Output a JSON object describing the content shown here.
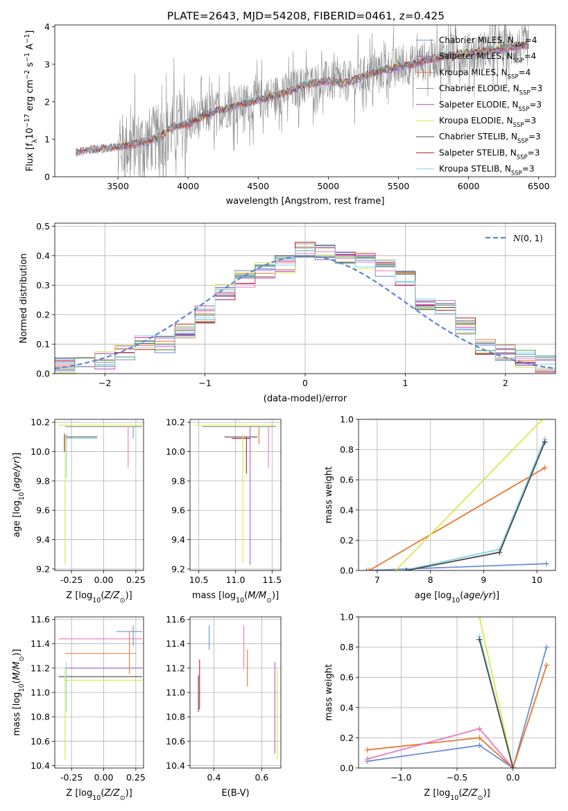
{
  "figure": {
    "title": "PLATE=2643, MJD=54208, FIBERID=0461, z=0.425"
  },
  "colors": [
    "#6a8fd6",
    "#a05ec8",
    "#e8772e",
    "#8b8b8b",
    "#b03ec2",
    "#d8e84a",
    "#4a4a4a",
    "#b81e2a",
    "#7fd4e6"
  ],
  "chart_data": [
    {
      "id": "spectrum",
      "type": "line",
      "xlabel": "wavelength [Angstrom, rest frame]",
      "ylabel": "Flux [f_λ 10^-17 erg cm^-2 s^-1 A^-1]",
      "xlim": [
        3050,
        6620
      ],
      "ylim": [
        0,
        4.05
      ],
      "xticks": [
        3500,
        4000,
        4500,
        5000,
        5500,
        6000,
        6500
      ],
      "yticks": [
        0,
        1,
        2,
        3,
        4
      ],
      "grid": false,
      "legend": "upper-right",
      "data": {
        "x": [
          3200,
          3300,
          3400,
          3500,
          3600,
          3700,
          3800,
          3900,
          4000,
          4100,
          4200,
          4300,
          4400,
          4500,
          4600,
          4700,
          4800,
          4900,
          5000,
          5100,
          5200,
          5300,
          5400,
          5500,
          5600,
          5700,
          5800,
          5900,
          6000,
          6100,
          6200,
          6300,
          6400
        ],
        "y": [
          0.65,
          0.72,
          0.75,
          0.8,
          0.85,
          0.95,
          1.05,
          1.35,
          1.4,
          1.6,
          1.75,
          1.85,
          1.95,
          2.05,
          2.15,
          2.25,
          2.4,
          2.5,
          2.55,
          2.5,
          2.6,
          2.75,
          2.85,
          2.95,
          3.0,
          3.1,
          3.2,
          3.25,
          3.3,
          3.35,
          3.4,
          3.45,
          3.5
        ]
      },
      "observed_noise_from": 3500,
      "series": [
        {
          "name": "Chabrier MILES, N_SSP=4",
          "color": "#6a8fd6"
        },
        {
          "name": "Salpeter MILES, N_SSP=4",
          "color": "#a05ec8"
        },
        {
          "name": "Kroupa MILES, N_SSP=4",
          "color": "#e8772e"
        },
        {
          "name": "Chabrier ELODIE, N_SSP=3",
          "color": "#8b8b8b"
        },
        {
          "name": "Salpeter ELODIE, N_SSP=3",
          "color": "#b03ec2"
        },
        {
          "name": "Kroupa ELODIE, N_SSP=3",
          "color": "#d8e84a"
        },
        {
          "name": "Chabrier STELIB, N_SSP=3",
          "color": "#4a4a4a"
        },
        {
          "name": "Salpeter STELIB, N_SSP=3",
          "color": "#b81e2a"
        },
        {
          "name": "Kroupa STELIB, N_SSP=3",
          "color": "#7fd4e6"
        }
      ]
    },
    {
      "id": "residuals",
      "type": "line",
      "xlabel": "(data-model)/error",
      "ylabel": "Normed distribution",
      "xlim": [
        -2.5,
        2.5
      ],
      "ylim": [
        0,
        0.51
      ],
      "xticks": [
        -2,
        -1,
        0,
        1,
        2
      ],
      "yticks": [
        0.0,
        0.1,
        0.2,
        0.3,
        0.4,
        0.5
      ],
      "grid": true,
      "legend": {
        "label": "N(0, 1)",
        "placement": "upper-right"
      },
      "bins": [
        -2.5,
        -2.3,
        -2.1,
        -1.9,
        -1.7,
        -1.5,
        -1.3,
        -1.1,
        -0.9,
        -0.7,
        -0.5,
        -0.3,
        -0.1,
        0.1,
        0.3,
        0.5,
        0.7,
        0.9,
        1.1,
        1.3,
        1.5,
        1.7,
        1.9,
        2.1,
        2.3,
        2.5
      ],
      "hist": [
        0.03,
        0.025,
        0.045,
        0.07,
        0.11,
        0.1,
        0.15,
        0.2,
        0.28,
        0.32,
        0.35,
        0.37,
        0.42,
        0.41,
        0.4,
        0.38,
        0.36,
        0.32,
        0.24,
        0.22,
        0.16,
        0.09,
        0.07,
        0.05,
        0.03
      ]
    },
    {
      "id": "age_vs_Z",
      "type": "scatter",
      "xlabel": "Z [log10(Z/Z⊙)]",
      "ylabel": "age  [log10(age/yr)]",
      "xlim": [
        -0.38,
        0.31
      ],
      "ylim": [
        9.19,
        10.22
      ],
      "xticks": [
        -0.25,
        0.0,
        0.25
      ],
      "xticklabels": [
        "-0.25",
        "0.00",
        "0.25"
      ],
      "yticks": [
        9.2,
        9.4,
        9.6,
        9.8,
        10.0,
        10.2
      ],
      "yticklabels": [
        "9.2",
        "9.4",
        "9.6",
        "9.8",
        "10.0",
        "10.2"
      ],
      "grid": true,
      "h_err": [
        {
          "y": 10.18,
          "x1": -0.35,
          "x2": 0.3,
          "c": "#d8e84a"
        },
        {
          "y": 10.17,
          "x1": -0.3,
          "x2": 0.3,
          "c": "#8b8b8b"
        },
        {
          "y": 10.1,
          "x1": -0.3,
          "x2": -0.05,
          "c": "#4a4a4a"
        },
        {
          "y": 10.09,
          "x1": -0.3,
          "x2": -0.05,
          "c": "#7fd4e6"
        }
      ],
      "v_err": [
        {
          "x": -0.3,
          "y1": 9.23,
          "y2": 10.12,
          "c": "#d8e84a"
        },
        {
          "x": -0.29,
          "y1": 9.82,
          "y2": 10.12,
          "c": "#7fd4e6"
        },
        {
          "x": -0.305,
          "y1": 10.0,
          "y2": 10.12,
          "c": "#b81e2a"
        },
        {
          "x": 0.19,
          "y1": 9.89,
          "y2": 10.17,
          "c": "#e87ab8"
        },
        {
          "x": 0.23,
          "y1": 10.09,
          "y2": 10.17,
          "c": "#6a8fd6"
        }
      ]
    },
    {
      "id": "age_vs_mass",
      "type": "scatter",
      "xlabel": "mass [log10(M/M⊙)]",
      "ylabel": "",
      "xlim": [
        10.38,
        11.62
      ],
      "ylim": [
        9.19,
        10.22
      ],
      "xticks": [
        10.5,
        11.0,
        11.5
      ],
      "xticklabels": [
        "10.5",
        "11.0",
        "11.5"
      ],
      "yticks": [
        9.2,
        9.4,
        9.6,
        9.8,
        10.0,
        10.2
      ],
      "yticklabels": [
        "9.2",
        "9.4",
        "9.6",
        "9.8",
        "10.0",
        "10.2"
      ],
      "grid": true,
      "h_err": [
        {
          "y": 10.18,
          "x1": 10.45,
          "x2": 11.55,
          "c": "#d8e84a"
        },
        {
          "y": 10.17,
          "x1": 10.55,
          "x2": 11.55,
          "c": "#8b8b8b"
        },
        {
          "y": 10.1,
          "x1": 10.85,
          "x2": 11.3,
          "c": "#4a4a4a"
        },
        {
          "y": 10.09,
          "x1": 10.95,
          "x2": 11.2,
          "c": "#b81e2a"
        }
      ],
      "v_err": [
        {
          "x": 11.1,
          "y1": 9.24,
          "y2": 10.12,
          "c": "#d8e84a"
        },
        {
          "x": 11.2,
          "y1": 9.23,
          "y2": 10.17,
          "c": "#a05ec8"
        },
        {
          "x": 11.15,
          "y1": 9.85,
          "y2": 10.1,
          "c": "#b81e2a"
        },
        {
          "x": 11.45,
          "y1": 9.89,
          "y2": 10.17,
          "c": "#e87ab8"
        },
        {
          "x": 11.32,
          "y1": 10.05,
          "y2": 10.17,
          "c": "#e8772e"
        }
      ]
    },
    {
      "id": "weight_vs_age",
      "type": "line",
      "xlabel": "age  [log10(age/yr)]",
      "ylabel": "mass weight",
      "xlim": [
        6.65,
        10.35
      ],
      "ylim": [
        0,
        1.0
      ],
      "xticks": [
        7,
        8,
        9,
        10
      ],
      "xticklabels": [
        "7",
        "8",
        "9",
        "10"
      ],
      "yticks": [
        0.0,
        0.2,
        0.4,
        0.6,
        0.8,
        1.0
      ],
      "yticklabels": [
        "0.0",
        "0.2",
        "0.4",
        "0.6",
        "0.8",
        "1.0"
      ],
      "grid": true,
      "series": [
        {
          "color": "#6a8fd6",
          "x": [
            6.8,
            10.18
          ],
          "y": [
            0.0,
            0.045
          ]
        },
        {
          "color": "#e8772e",
          "x": [
            6.85,
            10.15
          ],
          "y": [
            0.0,
            0.68
          ]
        },
        {
          "color": "#d8e84a",
          "x": [
            7.35,
            10.1
          ],
          "y": [
            0.0,
            1.0
          ]
        },
        {
          "color": "#7fd4e6",
          "x": [
            7.5,
            9.3,
            10.15
          ],
          "y": [
            0.0,
            0.14,
            0.87
          ]
        },
        {
          "color": "#4a4a4a",
          "x": [
            7.55,
            9.3,
            10.15
          ],
          "y": [
            0.0,
            0.12,
            0.85
          ]
        }
      ]
    },
    {
      "id": "mass_vs_Z",
      "type": "scatter",
      "xlabel": "Z [log10(Z/Z⊙)]",
      "ylabel": "mass [log10(M/M⊙)]",
      "xlim": [
        -0.38,
        0.31
      ],
      "ylim": [
        10.38,
        11.62
      ],
      "xticks": [
        -0.25,
        0.0,
        0.25
      ],
      "xticklabels": [
        "-0.25",
        "0.00",
        "0.25"
      ],
      "yticks": [
        10.4,
        10.6,
        10.8,
        11.0,
        11.2,
        11.4,
        11.6
      ],
      "yticklabels": [
        "10.4",
        "10.6",
        "10.8",
        "11.0",
        "11.2",
        "11.4",
        "11.6"
      ],
      "grid": true,
      "h_err": [
        {
          "y": 11.5,
          "x1": 0.1,
          "x2": 0.3,
          "c": "#6a8fd6"
        },
        {
          "y": 11.44,
          "x1": -0.35,
          "x2": 0.3,
          "c": "#e87ab8"
        },
        {
          "y": 11.32,
          "x1": -0.3,
          "x2": 0.25,
          "c": "#e8772e"
        },
        {
          "y": 11.2,
          "x1": -0.3,
          "x2": 0.3,
          "c": "#a05ec8"
        },
        {
          "y": 11.13,
          "x1": -0.35,
          "x2": 0.3,
          "c": "#4a4a4a"
        },
        {
          "y": 11.1,
          "x1": -0.3,
          "x2": 0.3,
          "c": "#d8e84a"
        }
      ],
      "v_err": [
        {
          "x": -0.3,
          "y1": 10.45,
          "y2": 11.2,
          "c": "#d8e84a"
        },
        {
          "x": -0.29,
          "y1": 10.84,
          "y2": 11.25,
          "c": "#7fd4e6"
        },
        {
          "x": 0.2,
          "y1": 11.15,
          "y2": 11.5,
          "c": "#e8772e"
        },
        {
          "x": 0.23,
          "y1": 11.38,
          "y2": 11.55,
          "c": "#6a8fd6"
        }
      ]
    },
    {
      "id": "mass_vs_EBV",
      "type": "scatter",
      "xlabel": "E(B-V)",
      "ylabel": "",
      "xlim": [
        0.3,
        0.68
      ],
      "ylim": [
        10.38,
        11.62
      ],
      "xticks": [
        0.4,
        0.6
      ],
      "xticklabels": [
        "0.4",
        "0.6"
      ],
      "yticks": [
        10.4,
        10.6,
        10.8,
        11.0,
        11.2,
        11.4,
        11.6
      ],
      "yticklabels": [
        "10.4",
        "10.6",
        "10.8",
        "11.0",
        "11.2",
        "11.4",
        "11.6"
      ],
      "grid": true,
      "h_err": [],
      "v_err": [
        {
          "x": 0.34,
          "y1": 10.86,
          "y2": 11.27,
          "c": "#b81e2a"
        },
        {
          "x": 0.335,
          "y1": 10.84,
          "y2": 11.14,
          "c": "#4a4a4a"
        },
        {
          "x": 0.38,
          "y1": 11.35,
          "y2": 11.55,
          "c": "#6a8fd6"
        },
        {
          "x": 0.525,
          "y1": 11.2,
          "y2": 11.55,
          "c": "#e87ab8"
        },
        {
          "x": 0.54,
          "y1": 11.05,
          "y2": 11.35,
          "c": "#e8772e"
        },
        {
          "x": 0.655,
          "y1": 10.5,
          "y2": 11.25,
          "c": "#a05ec8"
        },
        {
          "x": 0.665,
          "y1": 10.45,
          "y2": 11.2,
          "c": "#d8e84a"
        }
      ]
    },
    {
      "id": "weight_vs_Z",
      "type": "line",
      "xlabel": "Z [log10(Z/Z⊙)]",
      "ylabel": "mass weight",
      "xlim": [
        -1.38,
        0.38
      ],
      "ylim": [
        0,
        1.0
      ],
      "xticks": [
        -1.0,
        -0.5,
        0.0
      ],
      "xticklabels": [
        "−1.0",
        "−0.5",
        "0.0"
      ],
      "yticks": [
        0.0,
        0.2,
        0.4,
        0.6,
        0.8,
        1.0
      ],
      "yticklabels": [
        "0.0",
        "0.2",
        "0.4",
        "0.6",
        "0.8",
        "1.0"
      ],
      "grid": true,
      "series": [
        {
          "color": "#6a8fd6",
          "x": [
            -1.3,
            -0.3,
            0.0,
            0.3
          ],
          "y": [
            0.045,
            0.15,
            0.0,
            0.8
          ]
        },
        {
          "color": "#e8772e",
          "x": [
            -1.3,
            -0.3,
            0.0,
            0.3
          ],
          "y": [
            0.12,
            0.2,
            0.0,
            0.68
          ]
        },
        {
          "color": "#e87ab8",
          "x": [
            -1.3,
            -0.3,
            0.0
          ],
          "y": [
            0.06,
            0.26,
            0.0
          ]
        },
        {
          "color": "#d8e84a",
          "x": [
            -0.3,
            0.0
          ],
          "y": [
            1.0,
            0.0
          ]
        },
        {
          "color": "#7fd4e6",
          "x": [
            -0.3,
            0.0
          ],
          "y": [
            0.87,
            0.0
          ]
        },
        {
          "color": "#4a4a4a",
          "x": [
            -0.3,
            0.0
          ],
          "y": [
            0.85,
            0.0
          ]
        }
      ]
    }
  ]
}
